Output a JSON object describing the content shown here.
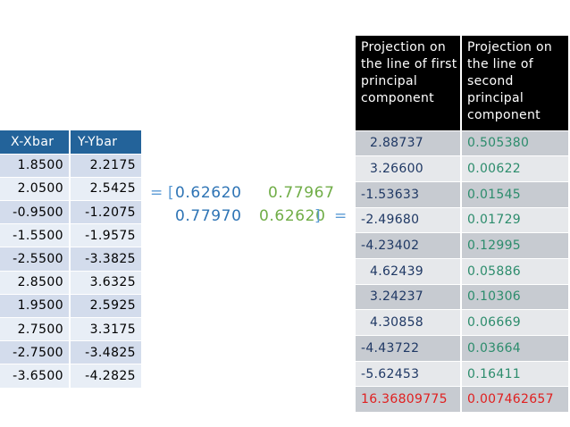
{
  "left_table": {
    "headers": [
      "X-Xbar",
      "Y-Ybar"
    ],
    "rows": [
      [
        "1.8500",
        "2.2175"
      ],
      [
        "2.0500",
        "2.5425"
      ],
      [
        "-0.9500",
        "-1.2075"
      ],
      [
        "-1.5500",
        "-1.9575"
      ],
      [
        "-2.5500",
        "-3.3825"
      ],
      [
        "2.8500",
        "3.6325"
      ],
      [
        "1.9500",
        "2.5925"
      ],
      [
        "2.7500",
        "3.3175"
      ],
      [
        "-2.7500",
        "-3.4825"
      ],
      [
        "-3.6500",
        "-4.2825"
      ]
    ]
  },
  "formula": {
    "eq_left": "=",
    "open_bracket": "[",
    "a": "0.62620",
    "b": "0.77967",
    "c": "0.77970",
    "d": "0.62620",
    "close_bracket": "]",
    "eq_right": "="
  },
  "right_table": {
    "headers": [
      "Projection on the line of first principal component",
      "Projection on the line of second principal component"
    ],
    "rows": [
      [
        "2.88737",
        "0.505380"
      ],
      [
        "3.26600",
        "0.00622"
      ],
      [
        "-1.53633",
        "0.01545"
      ],
      [
        "-2.49680",
        "0.01729"
      ],
      [
        "-4.23402",
        "0.12995"
      ],
      [
        "4.62439",
        "0.05886"
      ],
      [
        "3.24237",
        "0.10306"
      ],
      [
        "4.30858",
        "0.06669"
      ],
      [
        "-4.43722",
        "0.03664"
      ],
      [
        "-5.62453",
        "0.16411"
      ],
      [
        "16.36809775",
        "0.007462657"
      ]
    ]
  },
  "colors": {
    "left_header": "#23639a",
    "right_header": "#000000",
    "formula_col1": "#2e74b5",
    "formula_col2": "#70ad47",
    "highlight_red": "#e02020"
  }
}
